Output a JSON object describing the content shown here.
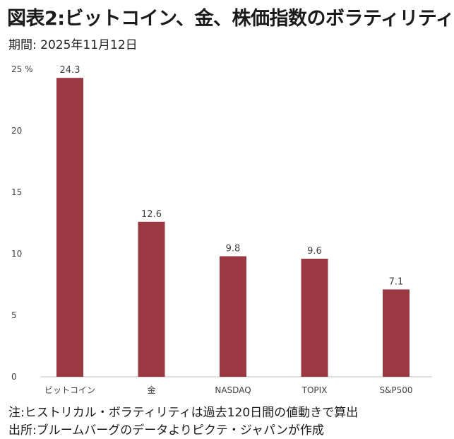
{
  "header": {
    "title": "図表2:ビットコイン、金、株価指数のボラティリティ",
    "subtitle": "期間: 2025年11月12日"
  },
  "chart_data": {
    "type": "bar",
    "categories": [
      "ビットコイン",
      "金",
      "NASDAQ",
      "TOPIX",
      "S&P500"
    ],
    "values": [
      24.3,
      12.6,
      9.8,
      9.6,
      7.1
    ],
    "data_labels": [
      "24.3",
      "12.6",
      "9.8",
      "9.6",
      "7.1"
    ],
    "yticks": [
      0,
      5,
      10,
      15,
      20,
      25
    ],
    "ytick_labels": [
      "0",
      "5",
      "10",
      "15",
      "20",
      "25 %"
    ],
    "ylim": [
      0,
      25
    ],
    "grid": false,
    "bar_color": "#9b3942"
  },
  "footer": {
    "note": "注:ヒストリカル・ボラティリティは過去120日間の値動きで算出",
    "source": "出所:ブルームバーグのデータよりピクテ・ジャパンが作成"
  }
}
